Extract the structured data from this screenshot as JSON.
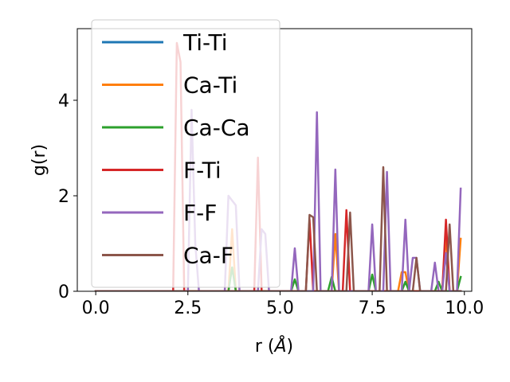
{
  "chart_data": {
    "type": "line",
    "title": "",
    "xlabel": "r (Å)",
    "xlabel_parts": {
      "prefix": "r (",
      "symbol": "Å",
      "suffix": ")"
    },
    "ylabel": "g(r)",
    "xlim": [
      -0.5,
      10.2
    ],
    "ylim": [
      0,
      5.5
    ],
    "x_ticks": [
      0.0,
      2.5,
      5.0,
      7.5,
      10.0
    ],
    "x_tick_labels": [
      "0.0",
      "2.5",
      "5.0",
      "7.5",
      "10.0"
    ],
    "y_ticks": [
      0,
      2,
      4
    ],
    "y_tick_labels": [
      "0",
      "2",
      "4"
    ],
    "grid": false,
    "legend_position": "upper-left",
    "x": [
      0.0,
      0.1,
      0.2,
      0.3,
      0.4,
      0.5,
      0.6,
      0.7,
      0.8,
      0.9,
      1.0,
      1.1,
      1.2,
      1.3,
      1.4,
      1.5,
      1.6,
      1.7,
      1.8,
      1.9,
      2.0,
      2.1,
      2.2,
      2.3,
      2.4,
      2.5,
      2.6,
      2.7,
      2.8,
      2.9,
      3.0,
      3.1,
      3.2,
      3.3,
      3.4,
      3.5,
      3.6,
      3.7,
      3.8,
      3.9,
      4.0,
      4.1,
      4.2,
      4.3,
      4.4,
      4.5,
      4.6,
      4.7,
      4.8,
      4.9,
      5.0,
      5.1,
      5.2,
      5.3,
      5.4,
      5.5,
      5.6,
      5.7,
      5.8,
      5.9,
      6.0,
      6.1,
      6.2,
      6.3,
      6.4,
      6.5,
      6.6,
      6.7,
      6.8,
      6.9,
      7.0,
      7.1,
      7.2,
      7.3,
      7.4,
      7.5,
      7.6,
      7.7,
      7.8,
      7.9,
      8.0,
      8.1,
      8.2,
      8.3,
      8.4,
      8.5,
      8.6,
      8.7,
      8.8,
      8.9,
      9.0,
      9.1,
      9.2,
      9.3,
      9.4,
      9.5,
      9.6,
      9.7,
      9.8,
      9.9
    ],
    "series": [
      {
        "name": "Ti-Ti",
        "color": "#1f77b4",
        "values": [
          0,
          0,
          0,
          0,
          0,
          0,
          0,
          0,
          0,
          0,
          0,
          0,
          0,
          0,
          0,
          0,
          0,
          0,
          0,
          0,
          0,
          0,
          0,
          0,
          0,
          0,
          0,
          0,
          0,
          0,
          0,
          0,
          0,
          0,
          0,
          0,
          0,
          0,
          0,
          0,
          0,
          0,
          0,
          0,
          0,
          0,
          0,
          0,
          0,
          0,
          0,
          0,
          0,
          0,
          0,
          0,
          0,
          0,
          0,
          0,
          0,
          0,
          0,
          0,
          0,
          0,
          0,
          0,
          0,
          0,
          0,
          0,
          0,
          0,
          0,
          0,
          0,
          0,
          0,
          0,
          0,
          0,
          0,
          0,
          0,
          0,
          0,
          0,
          0,
          0,
          0,
          0,
          0,
          0,
          0,
          0,
          0,
          0,
          0,
          0
        ]
      },
      {
        "name": "Ca-Ti",
        "color": "#ff7f0e",
        "values": [
          0,
          0,
          0,
          0,
          0,
          0,
          0,
          0,
          0,
          0,
          0,
          0,
          0,
          0,
          0,
          0,
          0,
          0,
          0,
          0,
          0,
          0,
          0,
          0,
          0,
          0,
          0,
          0,
          0,
          0,
          0,
          0,
          0,
          0,
          0,
          0,
          0,
          1.3,
          0,
          0,
          0,
          0,
          0,
          0,
          0,
          0,
          0,
          0,
          0,
          0,
          0,
          0,
          0,
          0,
          0,
          0,
          0,
          0,
          0,
          0,
          0,
          0,
          0,
          0,
          0,
          1.2,
          0,
          0,
          0,
          0,
          0,
          0,
          0,
          0,
          0,
          0,
          0,
          0,
          0,
          0,
          0,
          0,
          0,
          0.4,
          0.4,
          0,
          0,
          0,
          0,
          0,
          0,
          0,
          0,
          0,
          0,
          1.2,
          0,
          0,
          0,
          1.1
        ]
      },
      {
        "name": "Ca-Ca",
        "color": "#2ca02c",
        "values": [
          0,
          0,
          0,
          0,
          0,
          0,
          0,
          0,
          0,
          0,
          0,
          0,
          0,
          0,
          0,
          0,
          0,
          0,
          0,
          0,
          0,
          0,
          0,
          0,
          0,
          0,
          0,
          0,
          0,
          0,
          0,
          0,
          0,
          0,
          0,
          0,
          0,
          0.5,
          0,
          0,
          0,
          0,
          0,
          0,
          0,
          0,
          0,
          0,
          0,
          0,
          0,
          0,
          0,
          0,
          0.25,
          0,
          0,
          0,
          0,
          0,
          0,
          0,
          0,
          0,
          0.3,
          0,
          0,
          0,
          0,
          0,
          0,
          0,
          0,
          0,
          0,
          0.35,
          0,
          0,
          0,
          0,
          0,
          0,
          0,
          0,
          0.2,
          0,
          0,
          0,
          0,
          0,
          0,
          0,
          0,
          0.2,
          0,
          0,
          0,
          0,
          0,
          0.3
        ]
      },
      {
        "name": "F-Ti",
        "color": "#d62728",
        "values": [
          0,
          0,
          0,
          0,
          0,
          0,
          0,
          0,
          0,
          0,
          0,
          0,
          0,
          0,
          0,
          0,
          0,
          0,
          0,
          0,
          0,
          0,
          5.2,
          4.8,
          0,
          0,
          0,
          0,
          0,
          0,
          0,
          0,
          0,
          0,
          0,
          0,
          0,
          0,
          0,
          0,
          0,
          0,
          0,
          0,
          2.8,
          0,
          0,
          0,
          0,
          0,
          0,
          0,
          0,
          0,
          0,
          0,
          0,
          0,
          1.5,
          0,
          0,
          0,
          0,
          0,
          0,
          0,
          0,
          0,
          1.7,
          0,
          0,
          0,
          0,
          0,
          0,
          0,
          0,
          0,
          0,
          0,
          0,
          0,
          0,
          0,
          0,
          0,
          0,
          0,
          0,
          0,
          0,
          0,
          0,
          0,
          0,
          1.5,
          0,
          0,
          0,
          0
        ]
      },
      {
        "name": "F-F",
        "color": "#9467bd",
        "values": [
          0,
          0,
          0,
          0,
          0,
          0,
          0,
          0,
          0,
          0,
          0,
          0,
          0,
          0,
          0,
          0,
          0,
          0,
          0,
          0,
          0,
          0,
          0,
          0,
          0,
          0,
          3.8,
          1.0,
          0,
          0,
          0,
          0,
          0,
          0,
          0,
          0,
          2.0,
          1.9,
          1.8,
          0,
          0,
          0,
          0,
          0,
          0,
          1.3,
          1.2,
          0,
          0,
          0,
          0,
          0,
          0,
          0,
          0.9,
          0,
          0,
          0,
          0,
          0,
          3.75,
          0,
          0,
          0,
          0,
          2.55,
          0,
          0,
          0,
          0,
          0,
          0,
          0,
          0,
          0,
          1.4,
          0,
          0,
          0,
          2.5,
          0,
          0,
          0,
          0,
          1.5,
          0,
          0.7,
          0.7,
          0,
          0,
          0,
          0,
          0.6,
          0,
          0,
          0.8,
          0,
          0,
          0,
          2.15
        ]
      },
      {
        "name": "Ca-F",
        "color": "#8c564b",
        "values": [
          0,
          0,
          0,
          0,
          0,
          0,
          0,
          0,
          0,
          0,
          0,
          0,
          0,
          0,
          0,
          0,
          0,
          0,
          0,
          0,
          0,
          0,
          0,
          0,
          0,
          0,
          0,
          0,
          0,
          0,
          0,
          0,
          0,
          0,
          0,
          0,
          0,
          0,
          0,
          0,
          0,
          0,
          0,
          0,
          0,
          0,
          0,
          0,
          0,
          0,
          0,
          0,
          0,
          0,
          0,
          0,
          0,
          0,
          1.6,
          1.55,
          0,
          0,
          0,
          0,
          0,
          0,
          0,
          0,
          0,
          1.65,
          0,
          0,
          0,
          0,
          0,
          0,
          0,
          0,
          2.6,
          0,
          0,
          0,
          0,
          0,
          0,
          0,
          0,
          0.7,
          0,
          0,
          0,
          0,
          0,
          0,
          0,
          0,
          1.4,
          0,
          0,
          0
        ]
      }
    ]
  }
}
